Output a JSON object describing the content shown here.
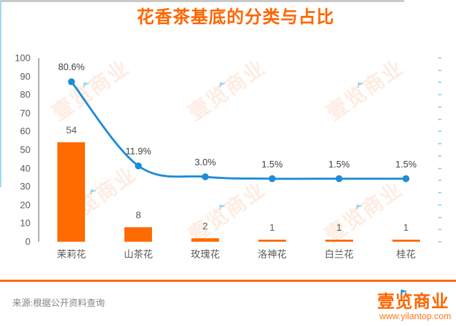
{
  "title": "花香茶基底的分类与占比",
  "footer": {
    "source_note": "来源:根据公开资料查询",
    "logo_text": "壹览商业",
    "logo_url": "www.yilantop.com"
  },
  "watermark_text": "壹览商业",
  "colors": {
    "accent_orange": "#FF6600",
    "bar": "#FF6B00",
    "line": "#1F8CD6",
    "secondary_axis": "#9FD7F2",
    "primary_axis": "#ABABAB",
    "baseline": "#C9C9C9",
    "tick_label": "#595959",
    "data_label": "#404040",
    "source_text": "#828282",
    "watermark": "#F97628"
  },
  "chart_data": {
    "type": "bar+line",
    "title": "花香茶基底的分类与占比",
    "categories": [
      "茉莉花",
      "山茶花",
      "玫瑰花",
      "洛神花",
      "白兰花",
      "桂花"
    ],
    "series": [
      {
        "type": "bar",
        "axis": "left",
        "values": [
          54,
          8,
          2,
          1,
          1,
          1
        ],
        "data_labels": [
          "54",
          "8",
          "2",
          "1",
          "1",
          "1"
        ],
        "color": "#FF6B00"
      },
      {
        "type": "line",
        "axis": "right",
        "values": [
          80.6,
          11.9,
          3.0,
          1.5,
          1.5,
          1.5
        ],
        "data_labels": [
          "80.6%",
          "11.9%",
          "3.0%",
          "1.5%",
          "1.5%",
          "1.5%"
        ],
        "color": "#1F8CD6"
      }
    ],
    "left_axis": {
      "min": 0,
      "max": 100,
      "tick_labels": [
        "0",
        "10",
        "20",
        "30",
        "40",
        "50",
        "60",
        "70",
        "80",
        "90",
        "100"
      ]
    },
    "right_axis": {
      "min": -50,
      "max": 100,
      "tick_count": 16,
      "labels_visible": false
    },
    "xlabel": "",
    "ylabel": "",
    "grid": false,
    "legend": "none"
  }
}
